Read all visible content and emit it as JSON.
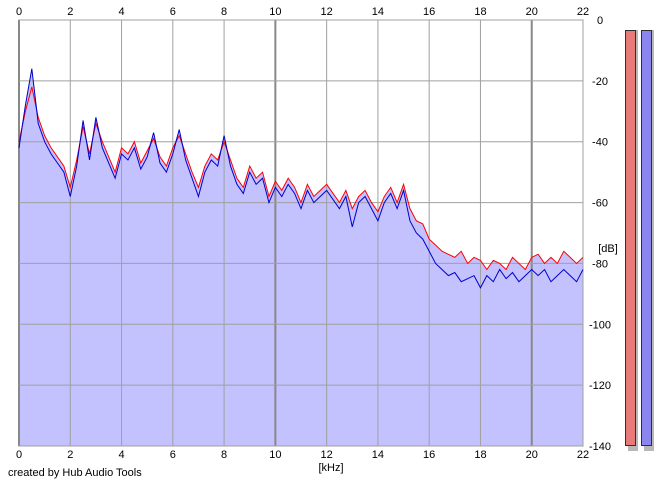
{
  "footer": "created by Hub Audio Tools",
  "colors": {
    "background": "#ffffff",
    "fill": "#c4c1ff",
    "left_channel": "#ff0000",
    "right_channel": "#0000cc",
    "grid": "#a0a0a0",
    "meter_left": "#e87a7a",
    "meter_right": "#8a86ee"
  },
  "meters": {
    "left": {
      "color": "#e87a7a",
      "level": 0.99
    },
    "right": {
      "color": "#8a86ee",
      "level": 0.99
    }
  },
  "chart_data": {
    "type": "area",
    "xlabel": "[kHz]",
    "ylabel": "[dB]",
    "xlim": [
      0,
      22
    ],
    "ylim": [
      -140,
      0
    ],
    "x_ticks": [
      "0",
      "2",
      "4",
      "6",
      "8",
      "10",
      "12",
      "14",
      "16",
      "18",
      "20",
      "22"
    ],
    "y_ticks": [
      "0",
      "-20",
      "-40",
      "-60",
      "-80",
      "-100",
      "-120",
      "-140"
    ],
    "grid": true,
    "series": [
      {
        "color": "#ff0000",
        "x": [
          0,
          0.25,
          0.5,
          0.75,
          1,
          1.25,
          1.5,
          1.75,
          2,
          2.25,
          2.5,
          2.75,
          3,
          3.25,
          3.5,
          3.75,
          4,
          4.25,
          4.5,
          4.75,
          5,
          5.25,
          5.5,
          5.75,
          6,
          6.25,
          6.5,
          6.75,
          7,
          7.25,
          7.5,
          7.75,
          8,
          8.25,
          8.5,
          8.75,
          9,
          9.25,
          9.5,
          9.75,
          10,
          10.25,
          10.5,
          10.75,
          11,
          11.25,
          11.5,
          11.75,
          12,
          12.25,
          12.5,
          12.75,
          13,
          13.25,
          13.5,
          13.75,
          14,
          14.25,
          14.5,
          14.75,
          15,
          15.25,
          15.5,
          15.75,
          16,
          16.25,
          16.5,
          16.75,
          17,
          17.25,
          17.5,
          17.75,
          18,
          18.25,
          18.5,
          18.75,
          19,
          19.25,
          19.5,
          19.75,
          20,
          20.25,
          20.5,
          20.75,
          21,
          21.25,
          21.5,
          21.75,
          22
        ],
        "values": [
          -40,
          -30,
          -22,
          -32,
          -38,
          -42,
          -45,
          -48,
          -55,
          -46,
          -35,
          -44,
          -34,
          -40,
          -45,
          -50,
          -42,
          -44,
          -40,
          -47,
          -43,
          -39,
          -45,
          -48,
          -42,
          -38,
          -44,
          -50,
          -55,
          -48,
          -44,
          -46,
          -40,
          -46,
          -52,
          -55,
          -48,
          -52,
          -50,
          -58,
          -53,
          -56,
          -52,
          -55,
          -60,
          -54,
          -58,
          -56,
          -54,
          -57,
          -60,
          -56,
          -62,
          -58,
          -56,
          -60,
          -63,
          -58,
          -55,
          -60,
          -54,
          -62,
          -66,
          -67,
          -72,
          -74,
          -76,
          -77,
          -78,
          -76,
          -80,
          -78,
          -79,
          -82,
          -79,
          -80,
          -82,
          -78,
          -80,
          -82,
          -78,
          -77,
          -80,
          -78,
          -80,
          -76,
          -78,
          -80,
          -78
        ]
      },
      {
        "color": "#0000cc",
        "x": [
          0,
          0.25,
          0.5,
          0.75,
          1,
          1.25,
          1.5,
          1.75,
          2,
          2.25,
          2.5,
          2.75,
          3,
          3.25,
          3.5,
          3.75,
          4,
          4.25,
          4.5,
          4.75,
          5,
          5.25,
          5.5,
          5.75,
          6,
          6.25,
          6.5,
          6.75,
          7,
          7.25,
          7.5,
          7.75,
          8,
          8.25,
          8.5,
          8.75,
          9,
          9.25,
          9.5,
          9.75,
          10,
          10.25,
          10.5,
          10.75,
          11,
          11.25,
          11.5,
          11.75,
          12,
          12.25,
          12.5,
          12.75,
          13,
          13.25,
          13.5,
          13.75,
          14,
          14.25,
          14.5,
          14.75,
          15,
          15.25,
          15.5,
          15.75,
          16,
          16.25,
          16.5,
          16.75,
          17,
          17.25,
          17.5,
          17.75,
          18,
          18.25,
          18.5,
          18.75,
          19,
          19.25,
          19.5,
          19.75,
          20,
          20.25,
          20.5,
          20.75,
          21,
          21.25,
          21.5,
          21.75,
          22
        ],
        "values": [
          -42,
          -28,
          -16,
          -34,
          -40,
          -44,
          -47,
          -50,
          -58,
          -48,
          -33,
          -46,
          -32,
          -42,
          -47,
          -52,
          -44,
          -46,
          -42,
          -49,
          -45,
          -37,
          -47,
          -50,
          -44,
          -36,
          -46,
          -52,
          -58,
          -50,
          -46,
          -48,
          -38,
          -48,
          -54,
          -57,
          -50,
          -54,
          -52,
          -60,
          -55,
          -58,
          -54,
          -57,
          -62,
          -56,
          -60,
          -58,
          -56,
          -59,
          -62,
          -58,
          -68,
          -60,
          -58,
          -62,
          -66,
          -60,
          -57,
          -62,
          -56,
          -66,
          -70,
          -72,
          -76,
          -80,
          -82,
          -84,
          -83,
          -86,
          -85,
          -84,
          -88,
          -84,
          -86,
          -82,
          -85,
          -83,
          -86,
          -84,
          -82,
          -84,
          -82,
          -86,
          -84,
          -82,
          -84,
          -86,
          -82
        ]
      }
    ]
  }
}
